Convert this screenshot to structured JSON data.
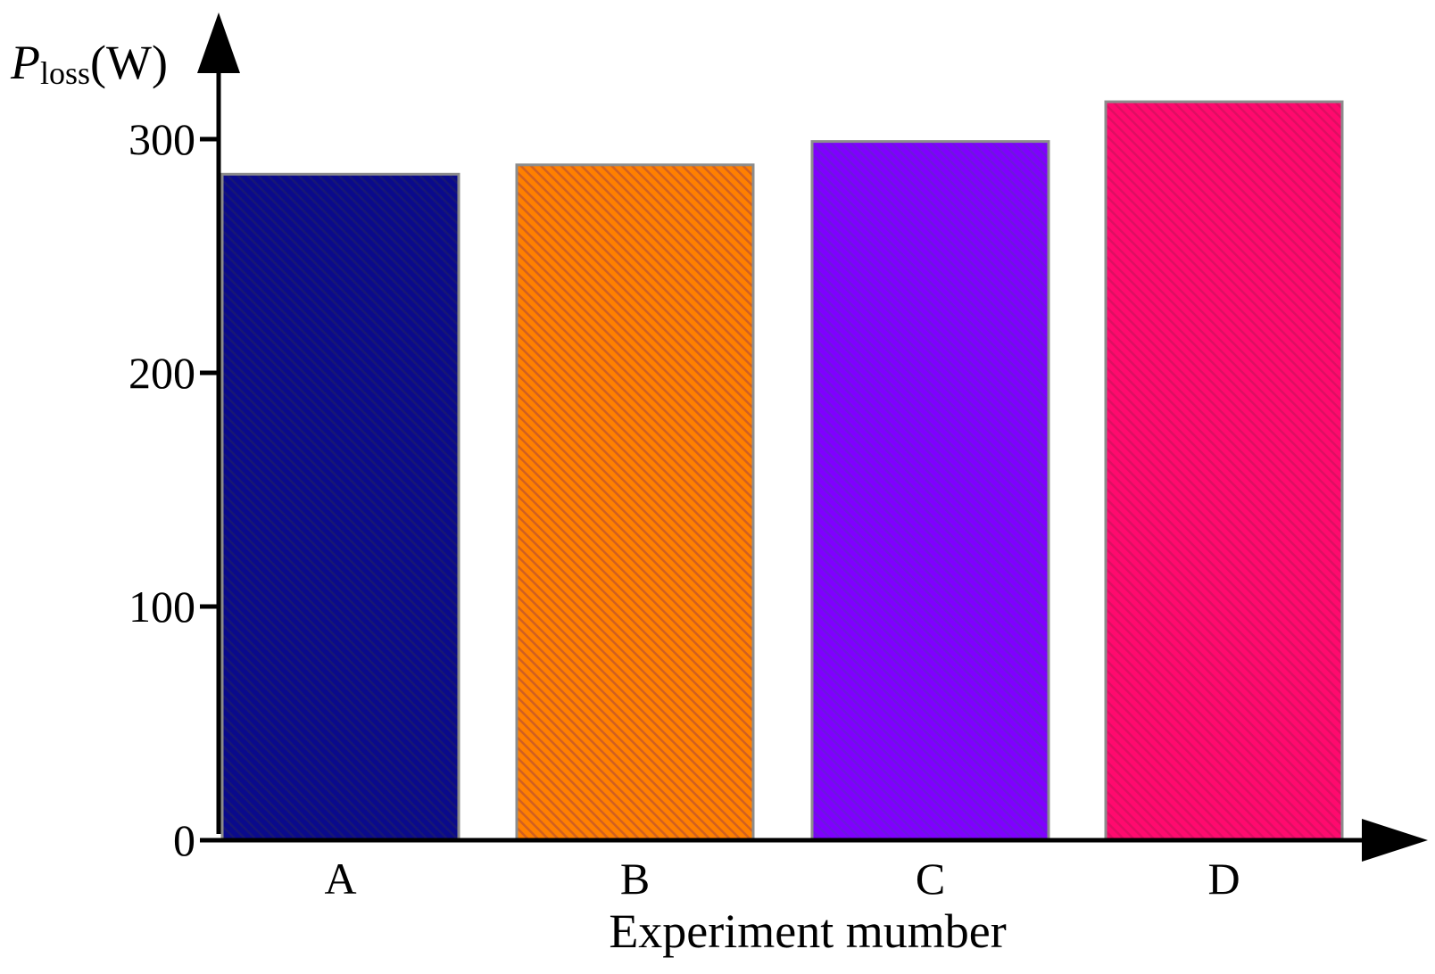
{
  "chart_data": {
    "type": "bar",
    "categories": [
      "A",
      "B",
      "C",
      "D"
    ],
    "series": [
      {
        "values": [
          285,
          289,
          299,
          316
        ]
      }
    ],
    "ylabel": {
      "symbol": "P",
      "subscript": "loss",
      "unit": "(W)"
    },
    "xlabel": "Experiment mumber",
    "yticks": [
      0,
      100,
      200,
      300
    ],
    "ylim": [
      0,
      340
    ],
    "grid": false,
    "legend": "none",
    "bar_colors": [
      "#0a0a8c",
      "#ff8000",
      "#8000ff",
      "#ff0a6e"
    ],
    "stripe_colors": [
      "#1a1a70",
      "#c85a28",
      "#6a1ad8",
      "#d81060"
    ],
    "fill_pattern": "diagonal-hatch"
  }
}
